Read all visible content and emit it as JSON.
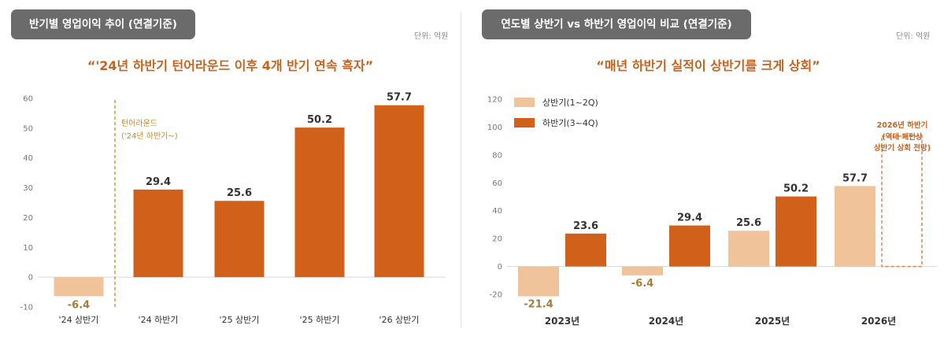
{
  "colors": {
    "dark": "#d0601a",
    "light": "#f0c39b",
    "accent": "#c8621d",
    "negative_label": "#a67c38",
    "axis": "#6e6e6e"
  },
  "left": {
    "pill": "반기별 영업이익 추이 (연결기준)",
    "unit": "단위: 억원",
    "subtitle": "“'24년 하반기 턴어라운드 이후 4개 반기 연속 흑자”",
    "annotation_line1": "턴어라운드",
    "annotation_line2": "('24년 하반기~)",
    "chart_data": {
      "type": "bar",
      "categories": [
        "'24 상반기",
        "'24 하반기",
        "'25 상반기",
        "'25 하반기",
        "'26 상반기"
      ],
      "values": [
        -6.4,
        29.4,
        25.6,
        50.2,
        57.7
      ],
      "value_labels": [
        "-6.4",
        "29.4",
        "25.6",
        "50.2",
        "57.7"
      ],
      "bar_colors": [
        "light",
        "dark",
        "dark",
        "dark",
        "dark"
      ],
      "ylim": [
        -10,
        60
      ],
      "yticks": [
        "-10",
        "0",
        "10",
        "20",
        "30",
        "40",
        "50",
        "60"
      ],
      "title": "",
      "xlabel": "",
      "ylabel": "",
      "grid": false
    }
  },
  "right": {
    "pill": "연도별 상반기 vs 하반기 영업이익 비교 (연결기준)",
    "unit": "단위: 억원",
    "subtitle": "“매년 하반기 실적이 상반기를 크게 상회”",
    "annotation_line1": "2026년 하반기",
    "annotation_line2": "(역대 패턴상",
    "annotation_line3": "상반기 상회 전망)",
    "chart_data": {
      "type": "bar",
      "categories": [
        "2023년",
        "2024년",
        "2025년",
        "2026년"
      ],
      "series": [
        {
          "name": "상반기(1~2Q)",
          "values": [
            -21.4,
            -6.4,
            25.6,
            57.7
          ],
          "labels": [
            "-21.4",
            "-6.4",
            "25.6",
            "57.7"
          ],
          "color": "light"
        },
        {
          "name": "하반기(3~4Q)",
          "values": [
            23.6,
            29.4,
            50.2,
            null
          ],
          "labels": [
            "23.6",
            "29.4",
            "50.2",
            ""
          ],
          "color": "dark"
        }
      ],
      "ylim": [
        -20,
        120
      ],
      "yticks": [
        "-20",
        "0",
        "20",
        "40",
        "60",
        "80",
        "100",
        "120"
      ],
      "legend": "top-left",
      "title": "",
      "xlabel": "",
      "ylabel": "",
      "grid": false
    }
  }
}
